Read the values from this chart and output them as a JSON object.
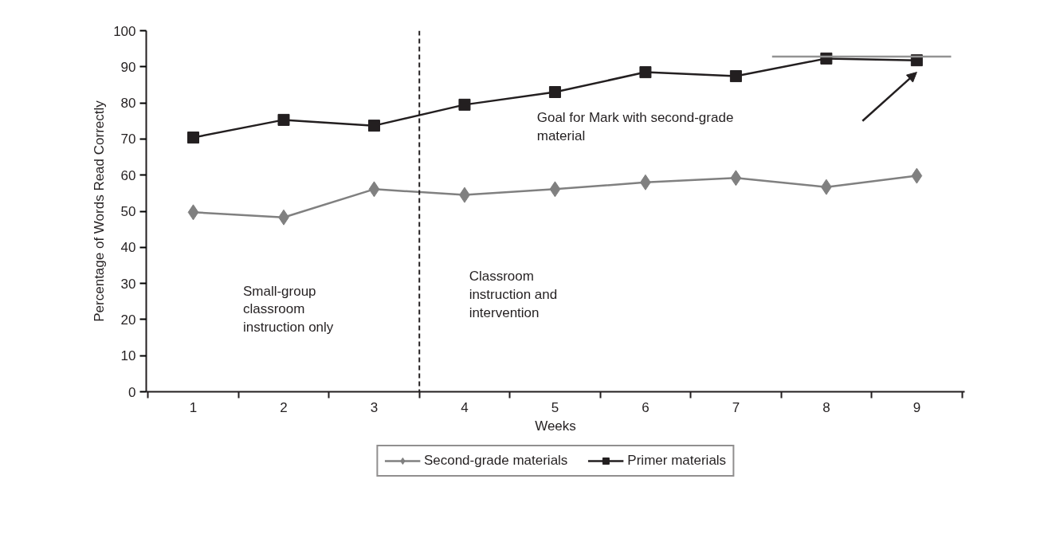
{
  "chart_data": {
    "type": "line",
    "xlabel": "Weeks",
    "ylabel": "Percentage of Words Read Correctly",
    "x": [
      1,
      2,
      3,
      4,
      5,
      6,
      7,
      8,
      9
    ],
    "series": [
      {
        "name": "Second-grade materials",
        "color": "#808080",
        "marker": "diamond",
        "values": [
          49.7,
          48.3,
          56.1,
          54.5,
          56.1,
          58.0,
          59.2,
          56.7,
          59.8
        ]
      },
      {
        "name": "Primer materials",
        "color": "#231f20",
        "marker": "square",
        "values": [
          70.4,
          75.3,
          73.7,
          79.5,
          83.0,
          88.5,
          87.4,
          92.3,
          91.8
        ]
      },
      {
        "type": "line",
        "color": "#939393",
        "marker": "none",
        "x": [
          7.4,
          9.38
        ],
        "values": [
          92.8,
          92.8
        ]
      }
    ],
    "ref_lines": [
      {
        "axis": "x",
        "value": 3.5,
        "label": null,
        "color": "#231f20",
        "line_style": "dashed"
      }
    ],
    "annotations": [
      "Small-group classroom instruction only",
      "Classroom instruction and intervention",
      "Goal for Mark with second-grade material"
    ],
    "xlim": [
      0.48,
      9.53
    ],
    "ylim": [
      0,
      100
    ],
    "xticks": [
      1,
      2,
      3,
      4,
      5,
      6,
      7,
      8,
      9,
      {
        "value": 0.5,
        "label": null
      },
      {
        "value": 1.5,
        "label": null
      },
      {
        "value": 2.5,
        "label": null
      },
      {
        "value": 3.5,
        "label": null
      },
      {
        "value": 4.5,
        "label": null
      },
      {
        "value": 5.5,
        "label": null
      },
      {
        "value": 6.5,
        "label": null
      },
      {
        "value": 7.5,
        "label": null
      },
      {
        "value": 8.5,
        "label": null
      },
      {
        "value": 9.5,
        "label": null
      }
    ],
    "yticks": [
      0,
      10,
      20,
      30,
      40,
      50,
      60,
      70,
      80,
      90,
      100
    ],
    "grid": false,
    "legend": "bottom"
  }
}
